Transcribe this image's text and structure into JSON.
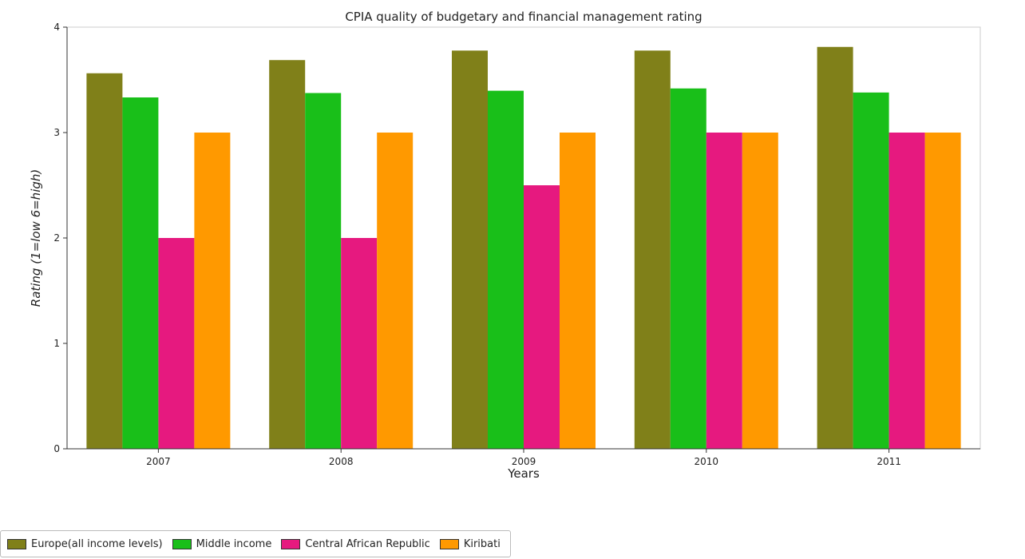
{
  "chart_data": {
    "type": "bar",
    "title": "CPIA quality of budgetary and financial management rating",
    "xlabel": "Years",
    "ylabel": "Rating (1=low 6=high)",
    "categories": [
      "2007",
      "2008",
      "2009",
      "2010",
      "2011"
    ],
    "ylim": [
      0,
      4
    ],
    "yticks": [
      "0",
      "1",
      "2",
      "3",
      "4"
    ],
    "grid": false,
    "legend_position": "bottom-left",
    "series": [
      {
        "name": "Europe(all income levels)",
        "color": "#808019",
        "values": [
          3.5625,
          3.6875,
          3.7778,
          3.7778,
          3.8125
        ]
      },
      {
        "name": "Middle income",
        "color": "#19bf19",
        "values": [
          3.3333,
          3.375,
          3.3968,
          3.4186,
          3.38
        ]
      },
      {
        "name": "Central African Republic",
        "color": "#e6197f",
        "values": [
          2.0,
          2.0,
          2.5,
          3.0,
          3.0
        ]
      },
      {
        "name": "Kiribati",
        "color": "#ff9900",
        "values": [
          3.0,
          3.0,
          3.0,
          3.0,
          3.0
        ]
      }
    ]
  }
}
